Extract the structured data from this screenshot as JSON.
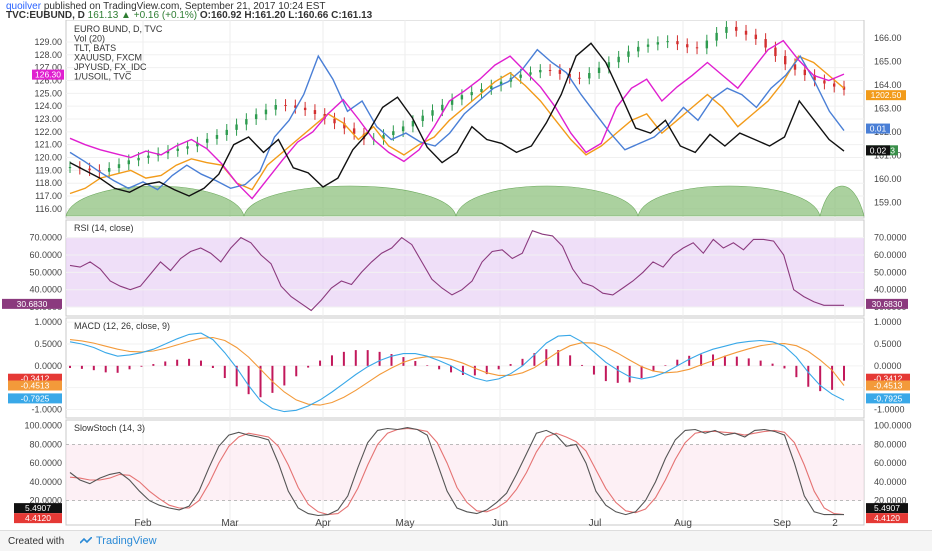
{
  "header": {
    "author": "quoilver",
    "published": "published on TradingView.com, September 21, 2017 10:24 EST",
    "symbol": "TVC:EUBUND, D",
    "last": "161.13",
    "change": "+0.16 (+0.1%)",
    "o": "O:160.92",
    "h": "H:161.20",
    "l": "L:160.66",
    "c": "C:161.13"
  },
  "footer": {
    "created_with": "Created with",
    "brand": "TradingView"
  },
  "colors": {
    "bund_up": "#2e9b4f",
    "bund_down": "#d32f2f",
    "tlt": "#111111",
    "xauusd": "#4a7fd6",
    "jpyusd": "#e01fd0",
    "usoil": "#f29b1a",
    "rsi": "#8b3a7e",
    "macd": "#39a8e8",
    "signal": "#f39a3a",
    "hist": "#c2185b",
    "stoch_k": "#555555",
    "stoch_d": "#e57373",
    "volume": "#8fc17f"
  },
  "chart_data": [
    {
      "type": "line",
      "legend": [
        "EURO BUND, D, TVC",
        "Vol (20)",
        "TLT, BATS",
        "XAUUSD, FXCM",
        "JPYUSD, FX_IDC",
        "1/USOIL, TVC"
      ],
      "x_labels": [
        "Feb",
        "Mar",
        "Apr",
        "May",
        "Jun",
        "Jul",
        "Aug",
        "Sep",
        "2"
      ],
      "left_ticks": [
        "129.00",
        "128.00",
        "127.00",
        "126.00",
        "125.00",
        "124.00",
        "123.00",
        "122.00",
        "121.00",
        "120.00",
        "119.00",
        "118.00",
        "117.00",
        "116.00"
      ],
      "right_ticks": [
        "166.00",
        "165.00",
        "164.00",
        "163.00",
        "162.00",
        "161.00",
        "160.00",
        "159.00"
      ],
      "left_ylim": [
        115.6,
        130.4
      ],
      "right_ylim": [
        158.5,
        166.6
      ],
      "badges": {
        "left_tlt": "126.30",
        "usoil": "1202.50",
        "xau": "0.01",
        "bund": "161.13",
        "jpy": "0.02"
      },
      "bund": [
        160.5,
        160.3,
        160.8,
        161.1,
        161.4,
        161.9,
        162.6,
        163.2,
        162.9,
        162.3,
        161.6,
        162.1,
        162.8,
        163.5,
        163.9,
        164.4,
        164.7,
        164.2,
        164.9,
        165.6,
        165.9,
        165.5,
        166.5,
        166.0,
        164.9,
        164.2,
        163.8
      ],
      "tlt": [
        119.6,
        119.0,
        118.4,
        117.6,
        117.3,
        117.9,
        118.1,
        117.5,
        117.0,
        117.6,
        118.7,
        121.0,
        121.6,
        120.4,
        121.4,
        119.2,
        118.8,
        117.7,
        118.4,
        120.6,
        121.9,
        123.9,
        124.7,
        123.1,
        120.8,
        119.6,
        120.4,
        122.4,
        121.4,
        121.1,
        120.4,
        120.9,
        122.7,
        124.9,
        127.9,
        128.9,
        127.4,
        124.9,
        122.3,
        121.9,
        122.9,
        120.9,
        120.4,
        121.8,
        120.9,
        121.9,
        121.4,
        120.9,
        121.6,
        124.4,
        122.9,
        121.4,
        120.5
      ],
      "xauusd": [
        120.4,
        119.7,
        118.9,
        118.2,
        117.6,
        118.1,
        117.5,
        118.6,
        119.4,
        118.7,
        118.2,
        117.6,
        117.9,
        118.9,
        121.6,
        122.9,
        124.9,
        127.9,
        126.1,
        123.6,
        124.4,
        122.4,
        121.4,
        121.9,
        121.2,
        120.9,
        121.9,
        123.4,
        124.4,
        125.4,
        125.9,
        126.9,
        128.4,
        127.4,
        126.6,
        124.9,
        123.4,
        121.9,
        120.6,
        121.1,
        121.6,
        122.6,
        123.9,
        122.9,
        124.6,
        125.4,
        124.9,
        123.9,
        125.4,
        126.4,
        127.9,
        125.9,
        123.6,
        122.1
      ],
      "jpyusd": [
        121.5,
        121.0,
        120.6,
        120.3,
        120.0,
        120.5,
        120.2,
        120.9,
        121.4,
        120.7,
        119.5,
        118.0,
        116.8,
        118.3,
        119.8,
        121.2,
        122.0,
        123.4,
        124.5,
        123.0,
        121.4,
        120.4,
        119.7,
        120.6,
        122.4,
        124.4,
        125.2,
        126.1,
        127.2,
        127.9,
        126.7,
        125.5,
        123.9,
        121.9,
        120.4,
        121.1,
        123.9,
        125.4,
        126.1,
        124.4,
        125.5,
        126.4,
        127.4,
        126.4,
        125.4,
        126.9,
        128.4,
        129.1,
        127.6,
        126.4,
        126.0,
        126.5
      ],
      "usoil": [
        117.2,
        117.6,
        118.4,
        118.7,
        119.0,
        118.4,
        118.6,
        119.4,
        119.9,
        119.6,
        119.4,
        118.0,
        117.5,
        119.4,
        120.4,
        121.4,
        122.4,
        123.4,
        122.7,
        121.4,
        122.4,
        120.9,
        120.2,
        121.0,
        121.6,
        122.9,
        123.9,
        124.9,
        125.9,
        126.6,
        125.6,
        124.4,
        122.9,
        121.4,
        120.2,
        120.9,
        121.9,
        122.9,
        123.4,
        121.9,
        122.9,
        123.9,
        124.9,
        123.9,
        122.4,
        123.4,
        124.4,
        125.9,
        127.9,
        127.4,
        126.4,
        125.4
      ]
    },
    {
      "type": "line",
      "legend": "RSI (14, close)",
      "right_ticks": [
        "70.0000",
        "60.0000",
        "50.0000",
        "40.0000",
        "30.0000"
      ],
      "ylim": [
        26,
        79
      ],
      "band": [
        30,
        70
      ],
      "badge": "30.6830",
      "values": [
        54,
        53,
        56,
        52,
        45,
        42,
        40,
        42,
        49,
        56,
        51,
        58,
        62,
        64,
        61,
        56,
        64,
        70,
        67,
        60,
        55,
        42,
        36,
        32,
        28,
        34,
        41,
        45,
        43,
        50,
        56,
        61,
        64,
        70,
        66,
        56,
        46,
        41,
        37,
        40,
        45,
        56,
        62,
        63,
        58,
        61,
        74,
        72,
        71,
        65,
        52,
        44,
        42,
        38,
        37,
        41,
        45,
        50,
        56,
        53,
        60,
        64,
        67,
        61,
        69,
        64,
        67,
        63,
        69,
        69,
        68,
        60,
        40,
        36,
        33,
        31,
        31,
        31
      ]
    },
    {
      "type": "bar",
      "legend": "MACD (12, 26, close, 9)",
      "right_ticks": [
        "1.0000",
        "0.5000",
        "0.0000",
        "-0.5000",
        "-1.0000"
      ],
      "ylim": [
        -1.15,
        1.05
      ],
      "badges": {
        "hist": "-0.3412",
        "signal": "-0.4513",
        "macd": "-0.7925"
      },
      "macd": [
        0.55,
        0.5,
        0.42,
        0.3,
        0.22,
        0.25,
        0.3,
        0.38,
        0.5,
        0.62,
        0.72,
        0.75,
        0.6,
        0.3,
        -0.05,
        -0.45,
        -0.8,
        -0.98,
        -1.05,
        -1.02,
        -0.92,
        -0.78,
        -0.6,
        -0.4,
        -0.2,
        -0.02,
        0.12,
        0.22,
        0.28,
        0.28,
        0.22,
        0.12,
        0.0,
        -0.15,
        -0.28,
        -0.35,
        -0.3,
        -0.18,
        0.0,
        0.25,
        0.52,
        0.68,
        0.7,
        0.55,
        0.32,
        0.08,
        -0.1,
        -0.25,
        -0.3,
        -0.25,
        -0.15,
        0.0,
        0.15,
        0.28,
        0.38,
        0.45,
        0.52,
        0.56,
        0.58,
        0.55,
        0.45,
        0.2,
        -0.15,
        -0.45,
        -0.65,
        -0.79
      ],
      "signal": [
        0.6,
        0.57,
        0.52,
        0.45,
        0.38,
        0.33,
        0.32,
        0.34,
        0.4,
        0.48,
        0.56,
        0.63,
        0.65,
        0.58,
        0.42,
        0.2,
        -0.08,
        -0.36,
        -0.6,
        -0.78,
        -0.88,
        -0.9,
        -0.84,
        -0.72,
        -0.56,
        -0.38,
        -0.2,
        -0.05,
        0.08,
        0.17,
        0.21,
        0.2,
        0.15,
        0.06,
        -0.06,
        -0.16,
        -0.22,
        -0.22,
        -0.16,
        -0.04,
        0.14,
        0.32,
        0.46,
        0.53,
        0.52,
        0.43,
        0.29,
        0.13,
        -0.02,
        -0.12,
        -0.16,
        -0.14,
        -0.08,
        0.02,
        0.12,
        0.22,
        0.31,
        0.39,
        0.46,
        0.5,
        0.51,
        0.46,
        0.33,
        0.13,
        -0.1,
        -0.45
      ]
    },
    {
      "type": "line",
      "legend": "SlowStoch (14, 3)",
      "right_ticks": [
        "100.0000",
        "80.0000",
        "60.0000",
        "40.0000",
        "20.0000"
      ],
      "ylim": [
        -4,
        104
      ],
      "band": [
        20,
        80
      ],
      "badges": {
        "k": "5.4907",
        "d": "4.4120"
      },
      "k": [
        50,
        42,
        38,
        44,
        48,
        50,
        42,
        30,
        20,
        15,
        12,
        10,
        14,
        30,
        55,
        78,
        90,
        93,
        90,
        88,
        85,
        60,
        30,
        12,
        6,
        4,
        5,
        10,
        25,
        55,
        82,
        95,
        97,
        96,
        98,
        96,
        90,
        60,
        30,
        12,
        8,
        6,
        10,
        18,
        28,
        48,
        70,
        92,
        95,
        90,
        78,
        80,
        60,
        30,
        15,
        8,
        5,
        8,
        20,
        40,
        65,
        85,
        95,
        96,
        92,
        95,
        90,
        92,
        88,
        95,
        96,
        94,
        90,
        60,
        25,
        8,
        5,
        5,
        5
      ],
      "d": [
        45,
        44,
        42,
        42,
        44,
        48,
        47,
        40,
        30,
        22,
        15,
        12,
        12,
        20,
        38,
        60,
        78,
        88,
        92,
        90,
        88,
        78,
        58,
        34,
        16,
        8,
        5,
        6,
        14,
        33,
        58,
        80,
        92,
        96,
        97,
        96,
        94,
        82,
        60,
        34,
        18,
        9,
        8,
        12,
        19,
        32,
        50,
        72,
        88,
        92,
        88,
        83,
        73,
        53,
        33,
        18,
        9,
        7,
        11,
        23,
        42,
        64,
        82,
        92,
        94,
        94,
        93,
        92,
        90,
        92,
        94,
        95,
        93,
        82,
        58,
        30,
        12,
        6,
        5
      ]
    }
  ]
}
